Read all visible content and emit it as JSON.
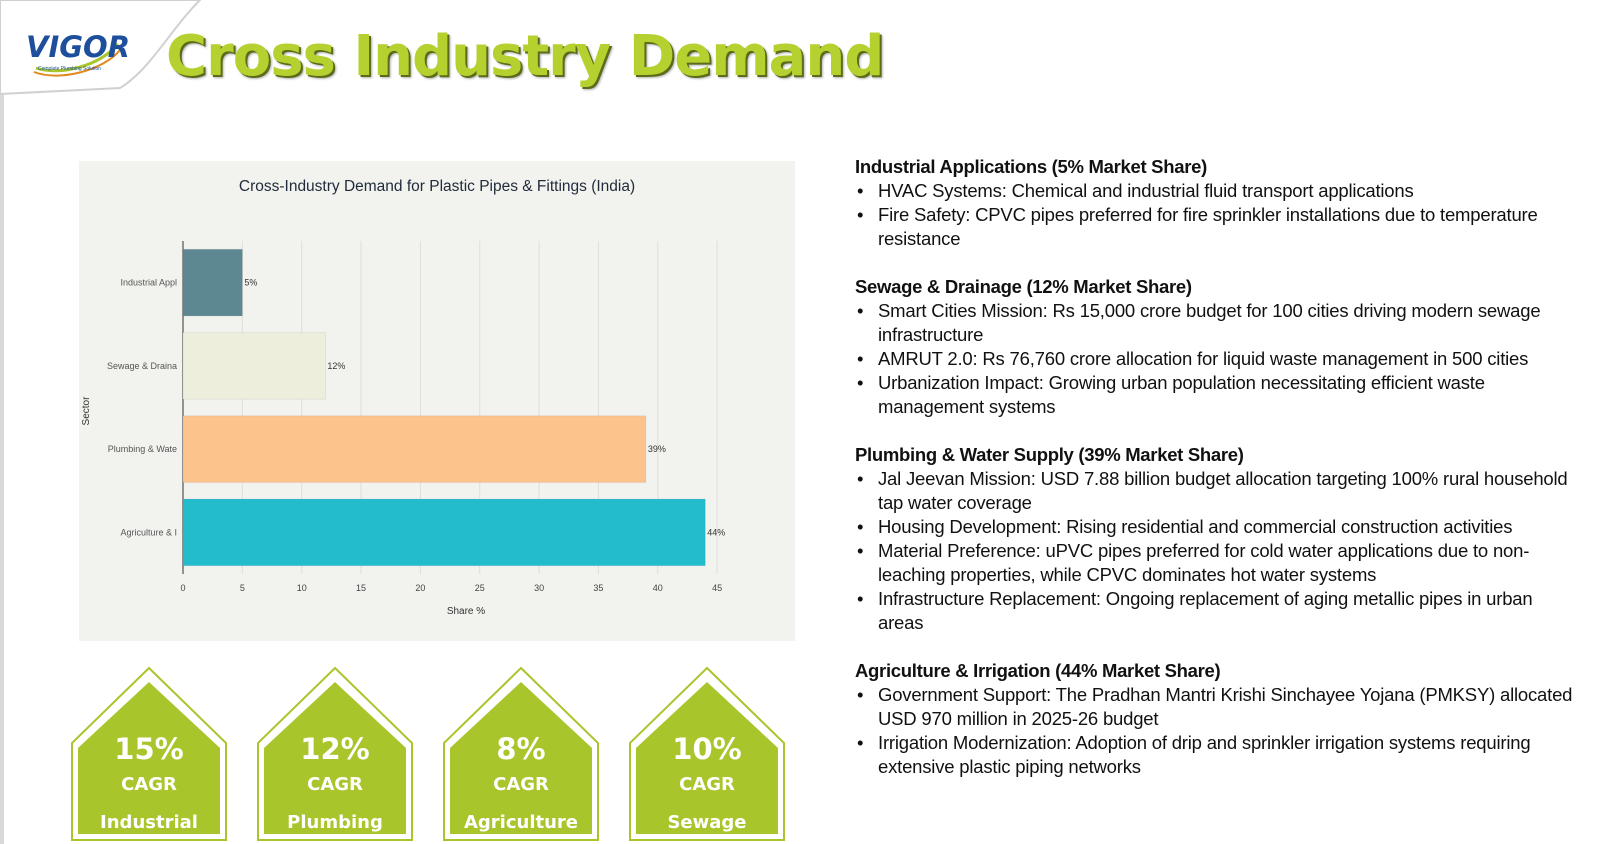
{
  "header": {
    "logo_text": "VIGOR",
    "logo_tagline": "Complete Plumbing Solution",
    "title": "Cross Industry Demand"
  },
  "colors": {
    "title_green": "#b4d12f",
    "badge_green": "#a8c62c",
    "logo_blue": "#1d4f9c"
  },
  "chart_data": {
    "type": "bar",
    "orientation": "horizontal",
    "title": "Cross-Industry Demand for Plastic Pipes & Fittings (India)",
    "xlabel": "Share %",
    "ylabel": "Sector",
    "categories": [
      "Industrial Appl",
      "Sewage & Draina",
      "Plumbing & Wate",
      "Agriculture & I"
    ],
    "values": [
      5,
      12,
      39,
      44
    ],
    "data_labels": [
      "5%",
      "12%",
      "39%",
      "44%"
    ],
    "bar_colors": [
      "#5e8891",
      "#eeeedd",
      "#fdc38c",
      "#22bccc"
    ],
    "xlim": [
      0,
      46
    ],
    "xticks": [
      0,
      5,
      10,
      15,
      20,
      25,
      30,
      35,
      40,
      45
    ],
    "grid": true
  },
  "badges": [
    {
      "percent": "15%",
      "cagr": "CAGR",
      "sector": "Industrial"
    },
    {
      "percent": "12%",
      "cagr": "CAGR",
      "sector": "Plumbing"
    },
    {
      "percent": "8%",
      "cagr": "CAGR",
      "sector": "Agriculture"
    },
    {
      "percent": "10%",
      "cagr": "CAGR",
      "sector": "Sewage"
    }
  ],
  "sections": [
    {
      "heading": "Industrial Applications (5% Market Share)",
      "bullets": [
        "HVAC Systems: Chemical and industrial fluid transport applications",
        "Fire Safety: CPVC pipes preferred for fire sprinkler installations due to temperature resistance"
      ]
    },
    {
      "heading": "Sewage & Drainage (12% Market Share)",
      "bullets": [
        "Smart Cities Mission: Rs 15,000 crore budget for 100 cities driving modern sewage infrastructure",
        "AMRUT 2.0: Rs 76,760 crore allocation for liquid waste management in 500 cities",
        "Urbanization Impact: Growing urban population necessitating efficient waste management systems"
      ]
    },
    {
      "heading": "Plumbing & Water Supply (39% Market Share)",
      "bullets": [
        "Jal Jeevan Mission: USD 7.88 billion budget allocation targeting 100% rural household tap water coverage",
        "Housing Development: Rising residential and commercial construction activities",
        "Material Preference: uPVC pipes preferred for cold water applications due to non-leaching properties, while CPVC dominates hot water systems",
        "Infrastructure Replacement: Ongoing replacement of aging metallic pipes in urban areas"
      ]
    },
    {
      "heading": "Agriculture & Irrigation (44% Market Share)",
      "bullets": [
        "Government Support: The Pradhan Mantri Krishi Sinchayee Yojana (PMKSY) allocated USD 970 million in 2025-26 budget",
        "Irrigation Modernization: Adoption of drip and sprinkler irrigation systems requiring extensive plastic piping networks"
      ]
    }
  ]
}
